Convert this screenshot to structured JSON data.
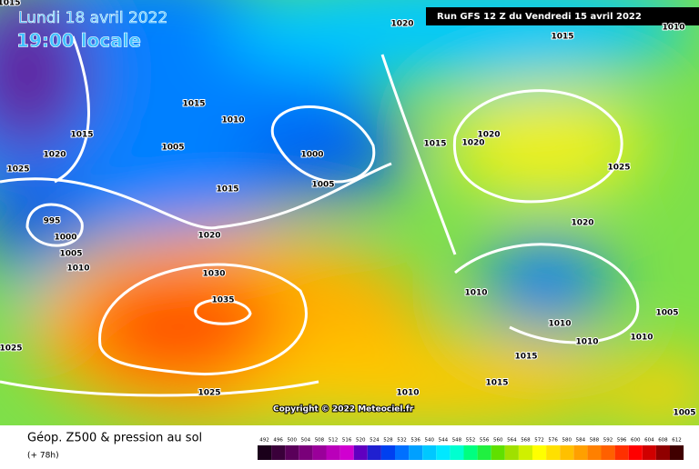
{
  "header": {
    "date": "Lundi 18 avril 2022",
    "time": "19:00 locale",
    "run": "Run GFS 12 Z du Vendredi 15 avril 2022"
  },
  "copyright": "Copyright © 2022 Meteociel.fr",
  "footer": {
    "title": "Géop. Z500 & pression au sol",
    "lead": "(+ 78h)"
  },
  "isobar_labels": [
    1015,
    1020,
    1015,
    1010,
    1015,
    1020,
    1025,
    1015,
    1010,
    1005,
    1000,
    1005,
    1015,
    1020,
    1020,
    1015,
    995,
    1000,
    1005,
    1010,
    1020,
    1030,
    1035,
    1025,
    1020,
    1010,
    1010,
    1010,
    1010,
    1005,
    1025,
    1025,
    1015,
    1015,
    1010,
    1005
  ],
  "scale": {
    "values": [
      492,
      496,
      500,
      504,
      508,
      512,
      516,
      520,
      524,
      528,
      532,
      536,
      540,
      544,
      548,
      552,
      556,
      560,
      564,
      568,
      572,
      576,
      580,
      584,
      588,
      592,
      596,
      600,
      604,
      608,
      612
    ],
    "colors": [
      "#1a001a",
      "#3a003a",
      "#5a005a",
      "#7a007a",
      "#9a009a",
      "#ba00ba",
      "#d000d0",
      "#6000c0",
      "#2020d0",
      "#0040f0",
      "#0070ff",
      "#00a0ff",
      "#00c8ff",
      "#00e8ff",
      "#00ffd0",
      "#00ff80",
      "#20f040",
      "#60e000",
      "#a0e000",
      "#d0f000",
      "#ffff00",
      "#ffe000",
      "#ffc000",
      "#ffa000",
      "#ff8000",
      "#ff6000",
      "#ff3000",
      "#ff0000",
      "#d00000",
      "#900000",
      "#400000"
    ]
  }
}
